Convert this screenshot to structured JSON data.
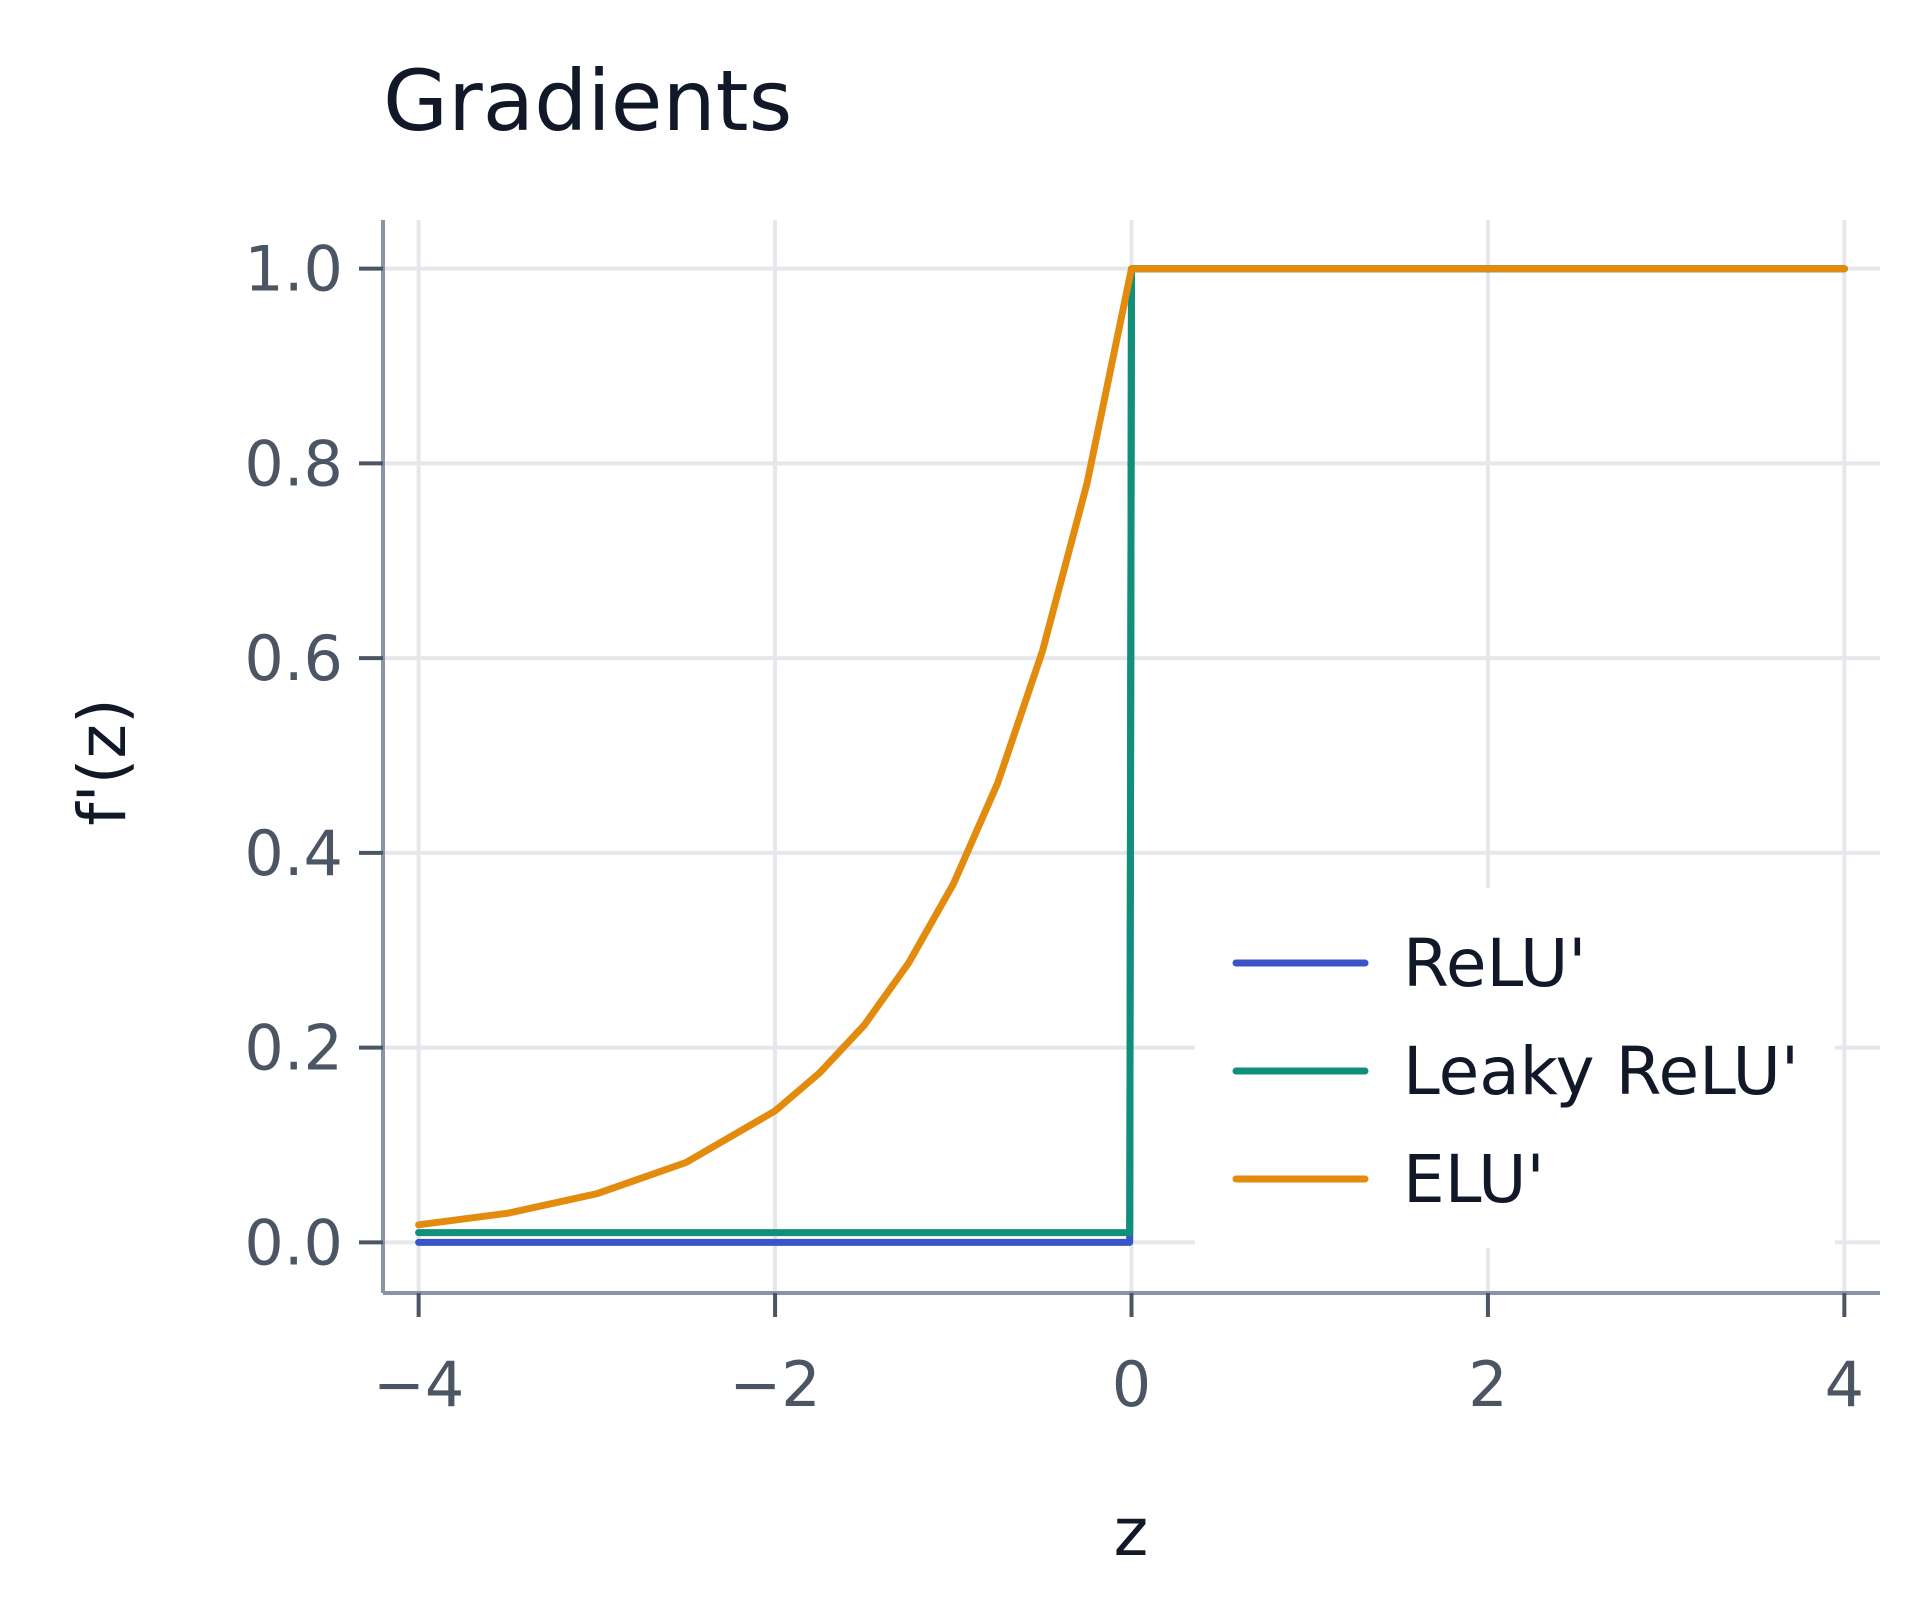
{
  "chart_data": {
    "type": "line",
    "title": "Gradients",
    "xlabel": "z",
    "ylabel": "f'(z)",
    "xlim": [
      -4.2,
      4.2
    ],
    "ylim": [
      -0.052,
      1.05
    ],
    "x_ticks": [
      -4,
      -2,
      0,
      2,
      4
    ],
    "x_tick_labels": [
      "−4",
      "−2",
      "0",
      "2",
      "4"
    ],
    "y_ticks": [
      0.0,
      0.2,
      0.4,
      0.6,
      0.8,
      1.0
    ],
    "y_tick_labels": [
      "0.0",
      "0.2",
      "0.4",
      "0.6",
      "0.8",
      "1.0"
    ],
    "grid": true,
    "legend_position": "bottom-right",
    "series": [
      {
        "name": "ReLU'",
        "color": "#3b55c8",
        "x": [
          -4,
          -0.01,
          0,
          4
        ],
        "y": [
          0,
          0,
          1,
          1
        ]
      },
      {
        "name": "Leaky ReLU'",
        "color": "#10907a",
        "x": [
          -4,
          -0.01,
          0,
          4
        ],
        "y": [
          0.01,
          0.01,
          1,
          1
        ]
      },
      {
        "name": "ELU'",
        "color": "#e28b0c",
        "x": [
          -4,
          -3.5,
          -3,
          -2.5,
          -2,
          -1.75,
          -1.5,
          -1.25,
          -1,
          -0.75,
          -0.5,
          -0.25,
          0,
          4
        ],
        "y": [
          0.018,
          0.03,
          0.05,
          0.082,
          0.135,
          0.174,
          0.223,
          0.287,
          0.368,
          0.472,
          0.607,
          0.779,
          1.0,
          1.0
        ]
      }
    ]
  }
}
